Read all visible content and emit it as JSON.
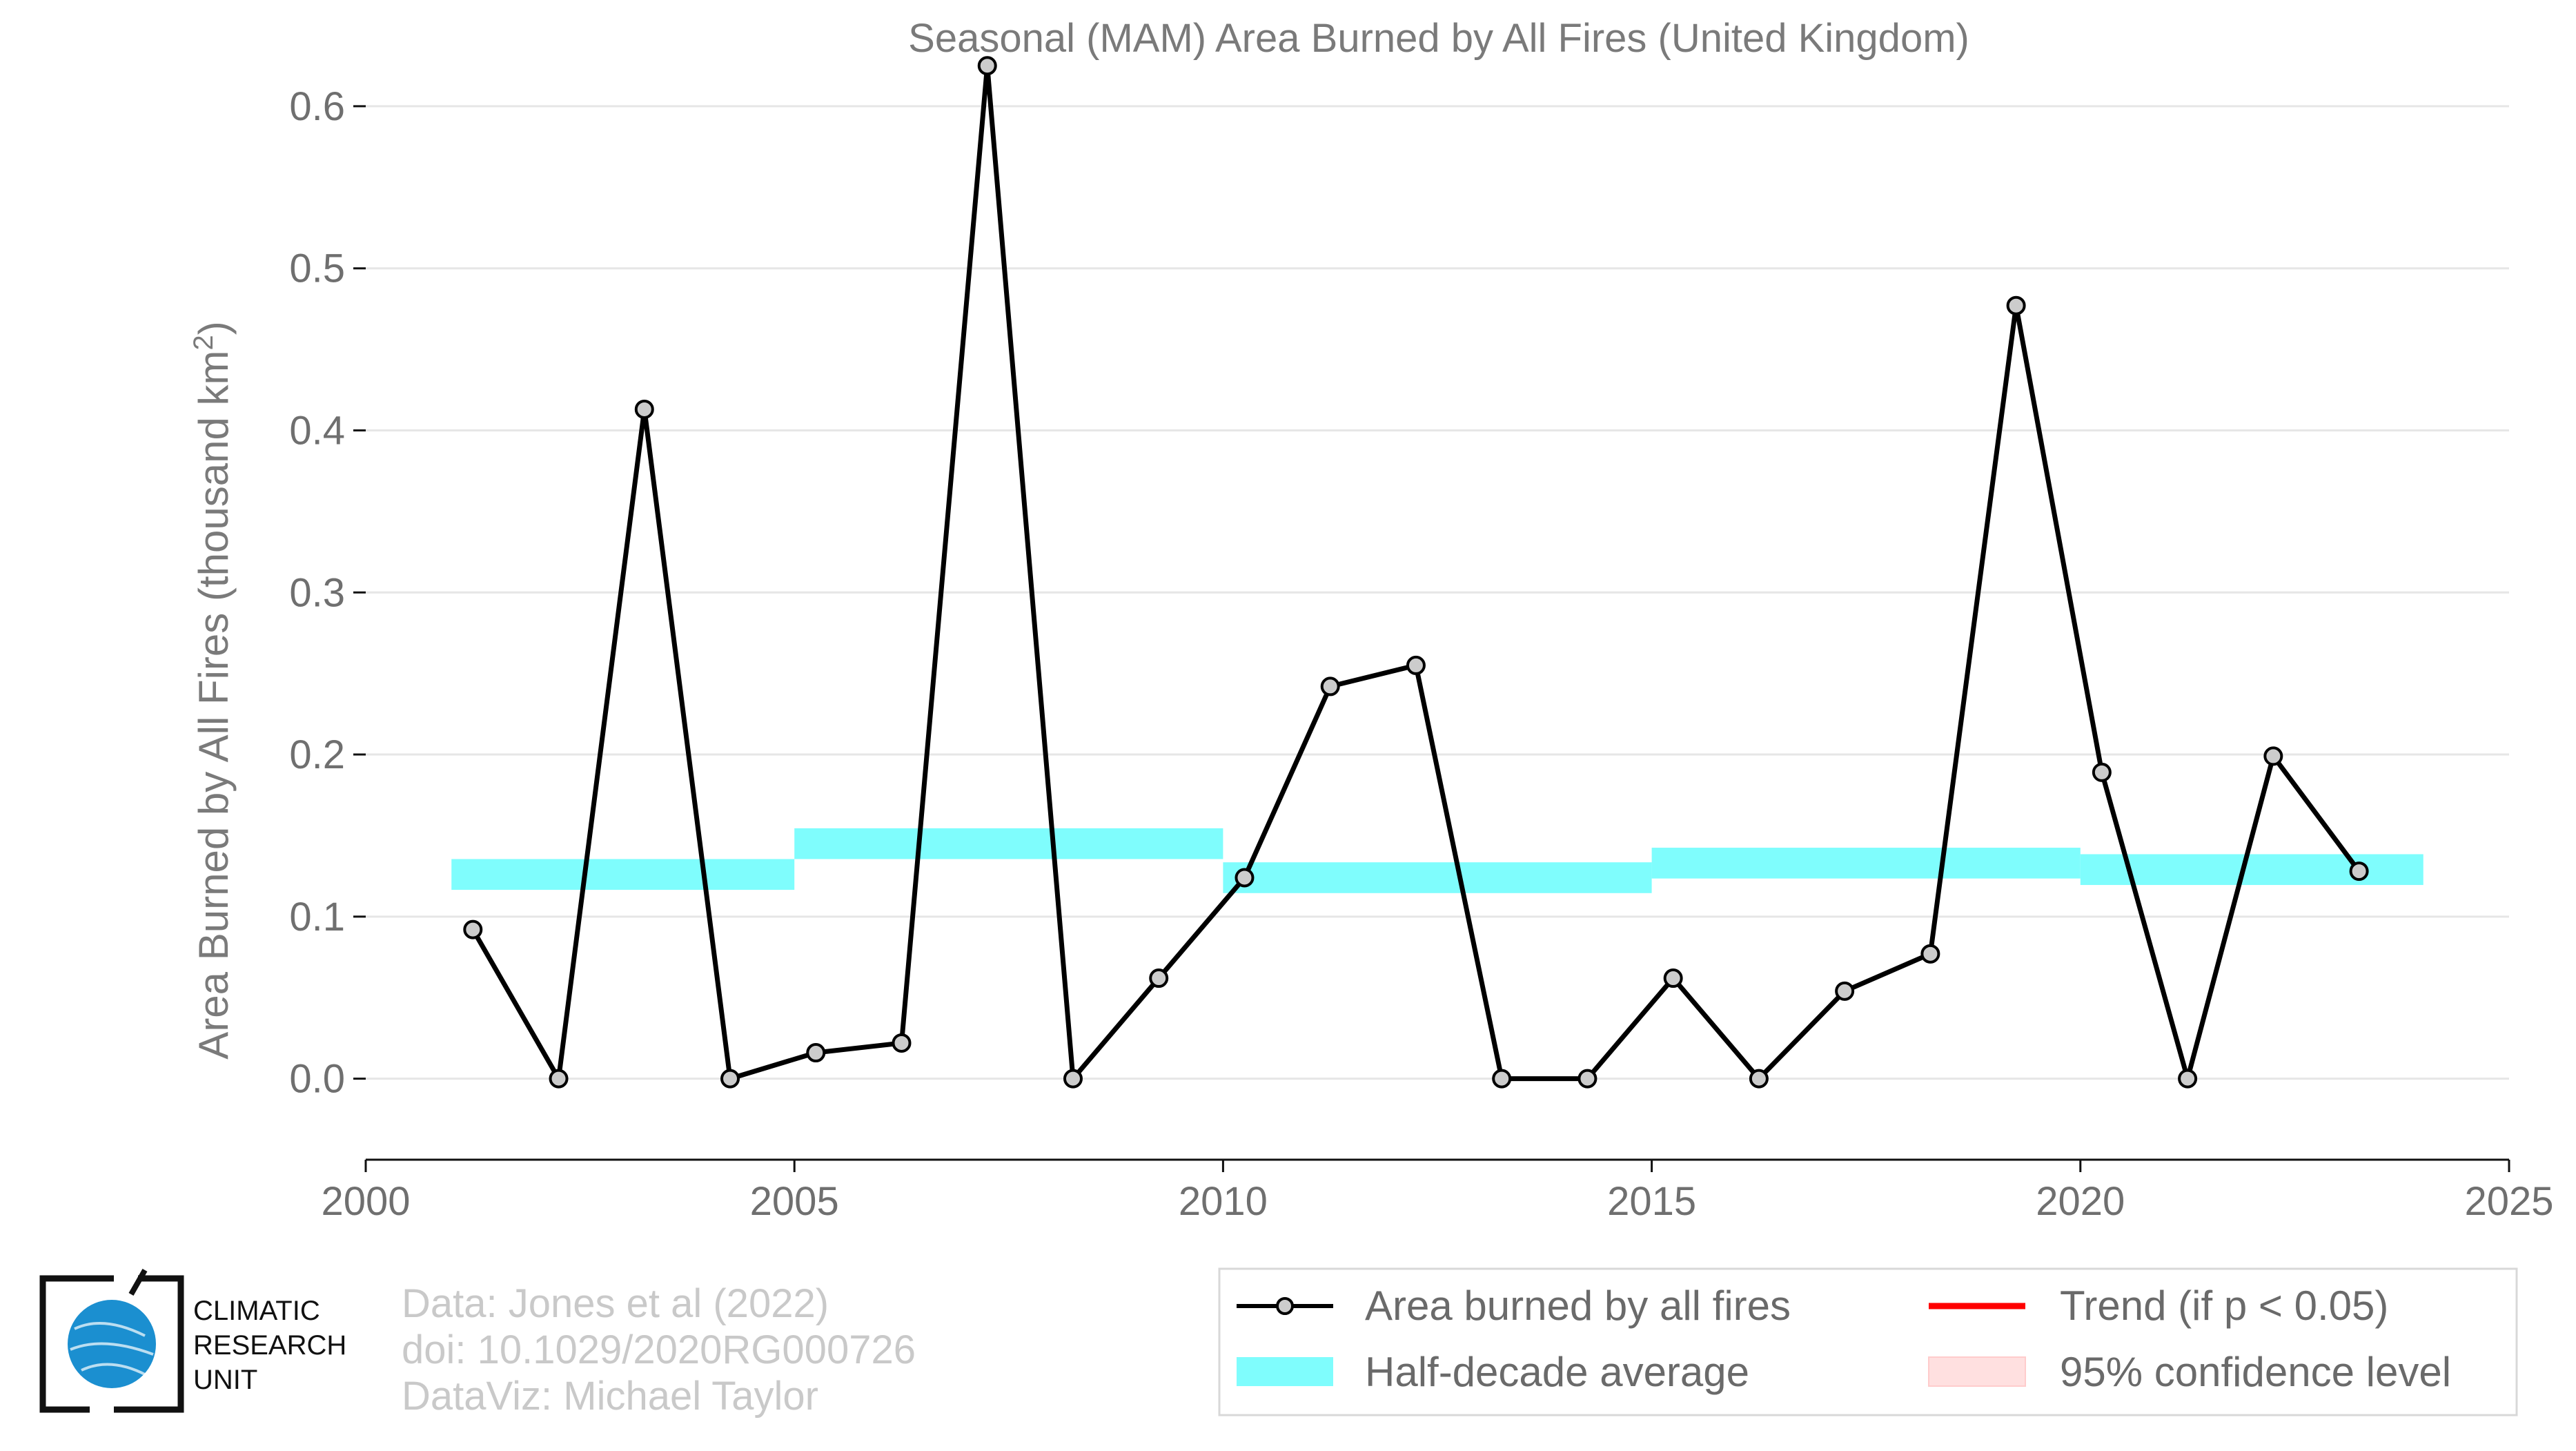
{
  "chart_data": {
    "type": "line",
    "title": "Seasonal (MAM) Area Burned by All Fires (United Kingdom)",
    "ylabel": "Area Burned by All Fires (thousand km",
    "ylabel_superscript": "2",
    "ylabel_suffix": ")",
    "xlim": [
      2000,
      2025
    ],
    "ylim": [
      -0.05,
      0.64
    ],
    "x_ticks": [
      2000,
      2005,
      2010,
      2015,
      2020,
      2025
    ],
    "y_ticks": [
      0.0,
      0.1,
      0.2,
      0.3,
      0.4,
      0.5,
      0.6
    ],
    "y_tick_labels": [
      "0.0",
      "0.1",
      "0.2",
      "0.3",
      "0.4",
      "0.5",
      "0.6"
    ],
    "grid": "horizontal",
    "series": [
      {
        "name": "Area burned by all fires",
        "color": "#000000",
        "marker_fill": "#cccccc",
        "x": [
          2001.25,
          2002.25,
          2003.25,
          2004.25,
          2005.25,
          2006.25,
          2007.25,
          2008.25,
          2009.25,
          2010.25,
          2011.25,
          2012.25,
          2013.25,
          2014.25,
          2015.25,
          2016.25,
          2017.25,
          2018.25,
          2019.25,
          2020.25,
          2021.25,
          2022.25,
          2023.25
        ],
        "y": [
          0.092,
          0.0,
          0.413,
          0.0,
          0.016,
          0.022,
          0.625,
          0.0,
          0.062,
          0.124,
          0.242,
          0.255,
          0.0,
          0.0,
          0.062,
          0.0,
          0.054,
          0.077,
          0.477,
          0.189,
          0.0,
          0.199,
          0.128
        ]
      }
    ],
    "half_decade_average": {
      "name": "Half-decade average",
      "color": "#7ffdfd",
      "segments": [
        {
          "x0": 2001,
          "x1": 2005,
          "y": 0.126
        },
        {
          "x0": 2005,
          "x1": 2010,
          "y": 0.145
        },
        {
          "x0": 2010,
          "x1": 2015,
          "y": 0.124
        },
        {
          "x0": 2015,
          "x1": 2020,
          "y": 0.133
        },
        {
          "x0": 2020,
          "x1": 2024,
          "y": 0.129
        }
      ]
    },
    "legend": {
      "placement": "bottom-right",
      "items": [
        {
          "label": "Area burned by all fires",
          "kind": "line-marker",
          "color": "#000000"
        },
        {
          "label": "Trend (if p < 0.05)",
          "kind": "line",
          "color": "#ff0000"
        },
        {
          "label": "Half-decade average",
          "kind": "band",
          "color": "#7ffdfd"
        },
        {
          "label": "95% confidence level",
          "kind": "band",
          "color": "#ffe0e0"
        }
      ]
    }
  },
  "credits": {
    "line1": "Data: Jones et al (2022)",
    "line2": "doi: 10.1029/2020RG000726",
    "line3": "DataViz: Michael Taylor"
  },
  "logo": {
    "line1": "CLIMATIC",
    "line2": "RESEARCH",
    "line3": "UNIT",
    "globe_color": "#1b8fd0"
  }
}
